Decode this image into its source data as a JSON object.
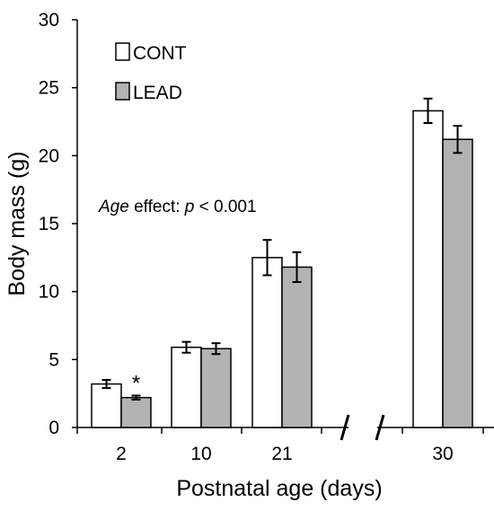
{
  "chart_data": {
    "type": "bar",
    "xlabel": "Postnatal age (days)",
    "ylabel": "Body mass (g)",
    "ylim": [
      0,
      30
    ],
    "yticks": [
      "0",
      "5",
      "10",
      "15",
      "20",
      "25",
      "30"
    ],
    "categories": [
      "2",
      "10",
      "21",
      "30"
    ],
    "axis_break": "between 21 and 30",
    "series": [
      {
        "name": "CONT",
        "color": "#ffffff",
        "values": [
          3.2,
          5.9,
          12.5,
          23.3
        ],
        "errors": [
          0.3,
          0.4,
          1.3,
          0.9
        ]
      },
      {
        "name": "LEAD",
        "color": "#b3b3b3",
        "values": [
          2.2,
          5.8,
          11.8,
          21.2
        ],
        "errors": [
          0.15,
          0.4,
          1.1,
          1.0
        ]
      }
    ],
    "significance": [
      {
        "category": "2",
        "series": "LEAD",
        "mark": "*"
      }
    ],
    "annotation": {
      "italic_prefix": "Age",
      "middle": " effect: ",
      "italic_var": "p",
      "suffix": " < 0.001"
    },
    "legend_position": "top-left",
    "grid": false
  }
}
